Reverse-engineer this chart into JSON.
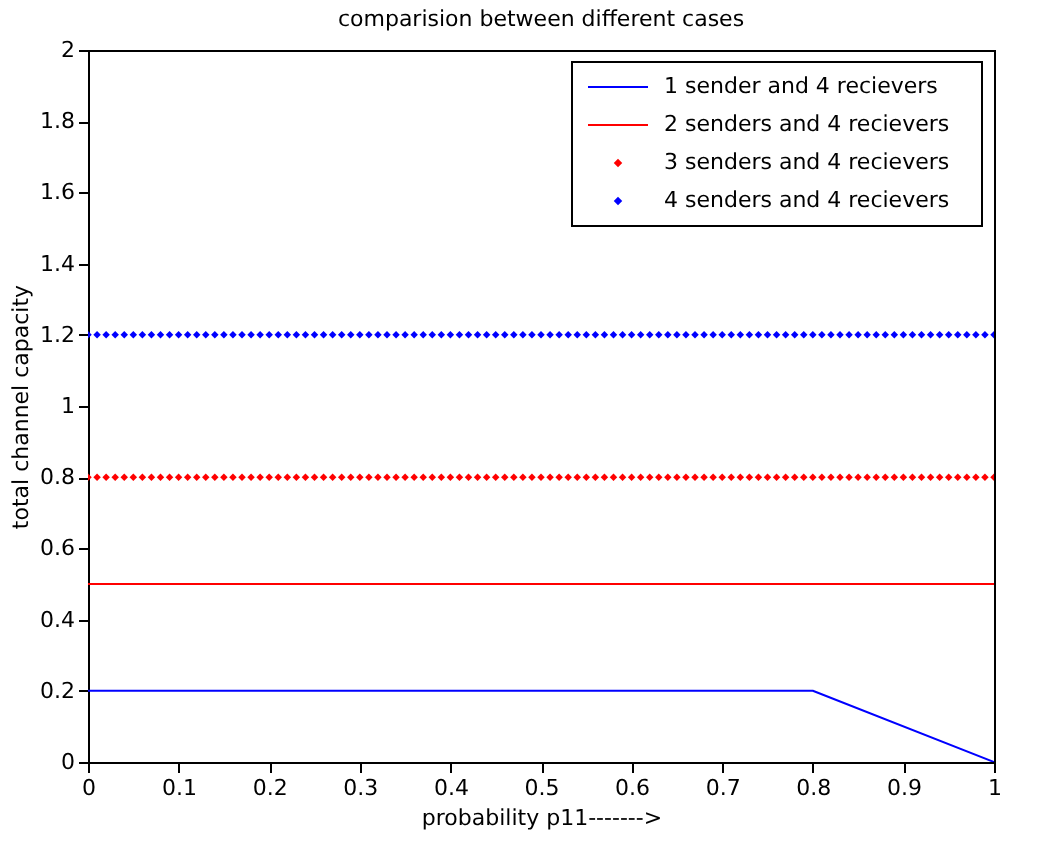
{
  "chart_data": {
    "type": "line",
    "title": "comparision between different cases",
    "xlabel": "probability p11------->",
    "ylabel": "total channel capacity",
    "xlim": [
      0,
      1
    ],
    "ylim": [
      0,
      2
    ],
    "xticks": [
      0,
      0.1,
      0.2,
      0.3,
      0.4,
      0.5,
      0.6,
      0.7,
      0.8,
      0.9,
      1
    ],
    "yticks": [
      0,
      0.2,
      0.4,
      0.6,
      0.8,
      1,
      1.2,
      1.4,
      1.6,
      1.8,
      2
    ],
    "grid": false,
    "legend": "top right",
    "series": [
      {
        "name": "1 sender and 4 recievers",
        "color": "#0000ff",
        "line_style": "solid",
        "x": [
          0,
          0.8,
          1
        ],
        "values": [
          0.2,
          0.2,
          0
        ]
      },
      {
        "name": "2 senders and 4 recievers",
        "color": "#ff0000",
        "line_style": "solid",
        "x": [
          0,
          1
        ],
        "values": [
          0.5,
          0.5
        ]
      },
      {
        "name": "3 senders and 4 recievers",
        "color": "#ff0000",
        "type": "scatter",
        "marker": "diamond",
        "x": [
          0,
          0.01,
          0.02,
          0.03,
          0.04,
          0.05,
          0.06,
          0.07,
          0.08,
          0.09,
          0.1,
          0.11,
          0.12,
          0.13,
          0.14,
          0.15,
          0.16,
          0.17,
          0.18,
          0.19,
          0.2,
          0.21,
          0.22,
          0.23,
          0.24,
          0.25,
          0.26,
          0.27,
          0.28,
          0.29,
          0.3,
          0.31,
          0.32,
          0.33,
          0.34,
          0.35,
          0.36,
          0.37,
          0.38,
          0.39,
          0.4,
          0.41,
          0.42,
          0.43,
          0.44,
          0.45,
          0.46,
          0.47,
          0.48,
          0.49,
          0.5,
          0.51,
          0.52,
          0.53,
          0.54,
          0.55,
          0.56,
          0.57,
          0.58,
          0.59,
          0.6,
          0.61,
          0.62,
          0.63,
          0.64,
          0.65,
          0.66,
          0.67,
          0.68,
          0.69,
          0.7,
          0.71,
          0.72,
          0.73,
          0.74,
          0.75,
          0.76,
          0.77,
          0.78,
          0.79,
          0.8,
          0.81,
          0.82,
          0.83,
          0.84,
          0.85,
          0.86,
          0.87,
          0.88,
          0.89,
          0.9,
          0.91,
          0.92,
          0.93,
          0.94,
          0.95,
          0.96,
          0.97,
          0.98,
          0.99,
          1
        ],
        "values": [
          0.8,
          0.8,
          0.8,
          0.8,
          0.8,
          0.8,
          0.8,
          0.8,
          0.8,
          0.8,
          0.8,
          0.8,
          0.8,
          0.8,
          0.8,
          0.8,
          0.8,
          0.8,
          0.8,
          0.8,
          0.8,
          0.8,
          0.8,
          0.8,
          0.8,
          0.8,
          0.8,
          0.8,
          0.8,
          0.8,
          0.8,
          0.8,
          0.8,
          0.8,
          0.8,
          0.8,
          0.8,
          0.8,
          0.8,
          0.8,
          0.8,
          0.8,
          0.8,
          0.8,
          0.8,
          0.8,
          0.8,
          0.8,
          0.8,
          0.8,
          0.8,
          0.8,
          0.8,
          0.8,
          0.8,
          0.8,
          0.8,
          0.8,
          0.8,
          0.8,
          0.8,
          0.8,
          0.8,
          0.8,
          0.8,
          0.8,
          0.8,
          0.8,
          0.8,
          0.8,
          0.8,
          0.8,
          0.8,
          0.8,
          0.8,
          0.8,
          0.8,
          0.8,
          0.8,
          0.8,
          0.8,
          0.8,
          0.8,
          0.8,
          0.8,
          0.8,
          0.8,
          0.8,
          0.8,
          0.8,
          0.8,
          0.8,
          0.8,
          0.8,
          0.8,
          0.8,
          0.8,
          0.8,
          0.8,
          0.8,
          0.8
        ]
      },
      {
        "name": "4 senders and 4 recievers",
        "color": "#0000ff",
        "type": "scatter",
        "marker": "diamond",
        "x": [
          0,
          0.01,
          0.02,
          0.03,
          0.04,
          0.05,
          0.06,
          0.07,
          0.08,
          0.09,
          0.1,
          0.11,
          0.12,
          0.13,
          0.14,
          0.15,
          0.16,
          0.17,
          0.18,
          0.19,
          0.2,
          0.21,
          0.22,
          0.23,
          0.24,
          0.25,
          0.26,
          0.27,
          0.28,
          0.29,
          0.3,
          0.31,
          0.32,
          0.33,
          0.34,
          0.35,
          0.36,
          0.37,
          0.38,
          0.39,
          0.4,
          0.41,
          0.42,
          0.43,
          0.44,
          0.45,
          0.46,
          0.47,
          0.48,
          0.49,
          0.5,
          0.51,
          0.52,
          0.53,
          0.54,
          0.55,
          0.56,
          0.57,
          0.58,
          0.59,
          0.6,
          0.61,
          0.62,
          0.63,
          0.64,
          0.65,
          0.66,
          0.67,
          0.68,
          0.69,
          0.7,
          0.71,
          0.72,
          0.73,
          0.74,
          0.75,
          0.76,
          0.77,
          0.78,
          0.79,
          0.8,
          0.81,
          0.82,
          0.83,
          0.84,
          0.85,
          0.86,
          0.87,
          0.88,
          0.89,
          0.9,
          0.91,
          0.92,
          0.93,
          0.94,
          0.95,
          0.96,
          0.97,
          0.98,
          0.99,
          1
        ],
        "values": [
          1.2,
          1.2,
          1.2,
          1.2,
          1.2,
          1.2,
          1.2,
          1.2,
          1.2,
          1.2,
          1.2,
          1.2,
          1.2,
          1.2,
          1.2,
          1.2,
          1.2,
          1.2,
          1.2,
          1.2,
          1.2,
          1.2,
          1.2,
          1.2,
          1.2,
          1.2,
          1.2,
          1.2,
          1.2,
          1.2,
          1.2,
          1.2,
          1.2,
          1.2,
          1.2,
          1.2,
          1.2,
          1.2,
          1.2,
          1.2,
          1.2,
          1.2,
          1.2,
          1.2,
          1.2,
          1.2,
          1.2,
          1.2,
          1.2,
          1.2,
          1.2,
          1.2,
          1.2,
          1.2,
          1.2,
          1.2,
          1.2,
          1.2,
          1.2,
          1.2,
          1.2,
          1.2,
          1.2,
          1.2,
          1.2,
          1.2,
          1.2,
          1.2,
          1.2,
          1.2,
          1.2,
          1.2,
          1.2,
          1.2,
          1.2,
          1.2,
          1.2,
          1.2,
          1.2,
          1.2,
          1.2,
          1.2,
          1.2,
          1.2,
          1.2,
          1.2,
          1.2,
          1.2,
          1.2,
          1.2,
          1.2,
          1.2,
          1.2,
          1.2,
          1.2,
          1.2,
          1.2,
          1.2,
          1.2,
          1.2,
          1.2
        ]
      }
    ]
  }
}
